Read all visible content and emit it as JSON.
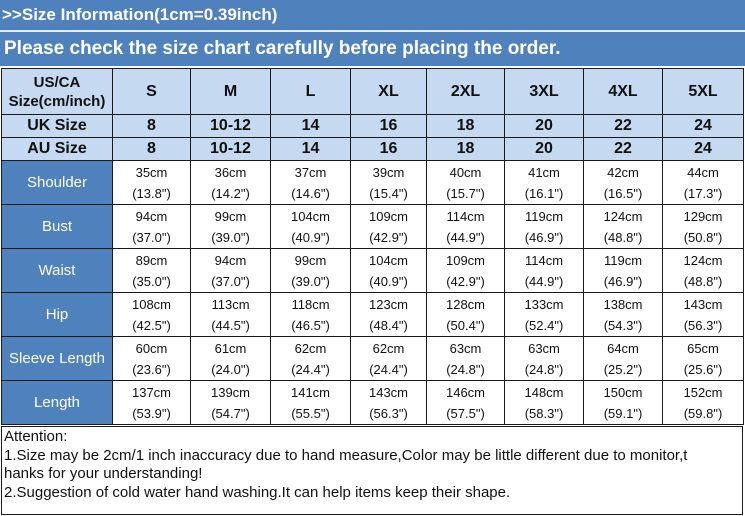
{
  "header": {
    "title": ">>Size Information(1cm=0.39inch)",
    "subtitle": "Please check the size chart carefully before placing the order."
  },
  "table": {
    "corner_label_line1": "US/CA",
    "corner_label_line2": "Size(cm/inch)",
    "us_sizes": [
      "S",
      "M",
      "L",
      "XL",
      "2XL",
      "3XL",
      "4XL",
      "5XL"
    ],
    "uk_label": "UK Size",
    "uk_sizes": [
      "8",
      "10-12",
      "14",
      "16",
      "18",
      "20",
      "22",
      "24"
    ],
    "au_label": "AU Size",
    "au_sizes": [
      "8",
      "10-12",
      "14",
      "16",
      "18",
      "20",
      "22",
      "24"
    ],
    "rows": [
      {
        "label": "Shoulder",
        "cm": [
          "35cm",
          "36cm",
          "37cm",
          "39cm",
          "40cm",
          "41cm",
          "42cm",
          "44cm"
        ],
        "inch": [
          "(13.8\")",
          "(14.2\")",
          "(14.6\")",
          "(15.4\")",
          "(15.7\")",
          "(16.1\")",
          "(16.5\")",
          "(17.3\")"
        ]
      },
      {
        "label": "Bust",
        "cm": [
          "94cm",
          "99cm",
          "104cm",
          "109cm",
          "114cm",
          "119cm",
          "124cm",
          "129cm"
        ],
        "inch": [
          "(37.0\")",
          "(39.0\")",
          "(40.9\")",
          "(42.9\")",
          "(44.9\")",
          "(46.9\")",
          "(48.8\")",
          "(50.8\")"
        ]
      },
      {
        "label": "Waist",
        "cm": [
          "89cm",
          "94cm",
          "99cm",
          "104cm",
          "109cm",
          "114cm",
          "119cm",
          "124cm"
        ],
        "inch": [
          "(35.0\")",
          "(37.0\")",
          "(39.0\")",
          "(40.9\")",
          "(42.9\")",
          "(44.9\")",
          "(46.9\")",
          "(48.8\")"
        ]
      },
      {
        "label": "Hip",
        "cm": [
          "108cm",
          "113cm",
          "118cm",
          "123cm",
          "128cm",
          "133cm",
          "138cm",
          "143cm"
        ],
        "inch": [
          "(42.5\")",
          "(44.5\")",
          "(46.5\")",
          "(48.4\")",
          "(50.4\")",
          "(52.4\")",
          "(54.3\")",
          "(56.3\")"
        ]
      },
      {
        "label": "Sleeve Length",
        "cm": [
          "60cm",
          "61cm",
          "62cm",
          "62cm",
          "63cm",
          "63cm",
          "64cm",
          "65cm"
        ],
        "inch": [
          "(23.6\")",
          "(24.0\")",
          "(24.4\")",
          "(24.4\")",
          "(24.8\")",
          "(24.8\")",
          "(25.2\")",
          "(25.6\")"
        ]
      },
      {
        "label": "Length",
        "cm": [
          "137cm",
          "139cm",
          "141cm",
          "143cm",
          "146cm",
          "148cm",
          "150cm",
          "152cm"
        ],
        "inch": [
          "(53.9\")",
          "(54.7\")",
          "(55.5\")",
          "(56.3\")",
          "(57.5\")",
          "(58.3\")",
          "(59.1\")",
          "(59.8\")"
        ]
      }
    ]
  },
  "attention": {
    "title": "Attention:",
    "line1a": "1.Size may be 2cm/1 inch inaccuracy due to hand measure,Color may be little different due to monitor,t",
    "line1b": "hanks for your understanding!",
    "line2": "2.Suggestion of cold water hand washing.It can help items keep their shape."
  },
  "colors": {
    "header_bg": "#4f81bd",
    "size_header_bg": "#c5d9f1",
    "label_bg": "#4f81bd"
  }
}
